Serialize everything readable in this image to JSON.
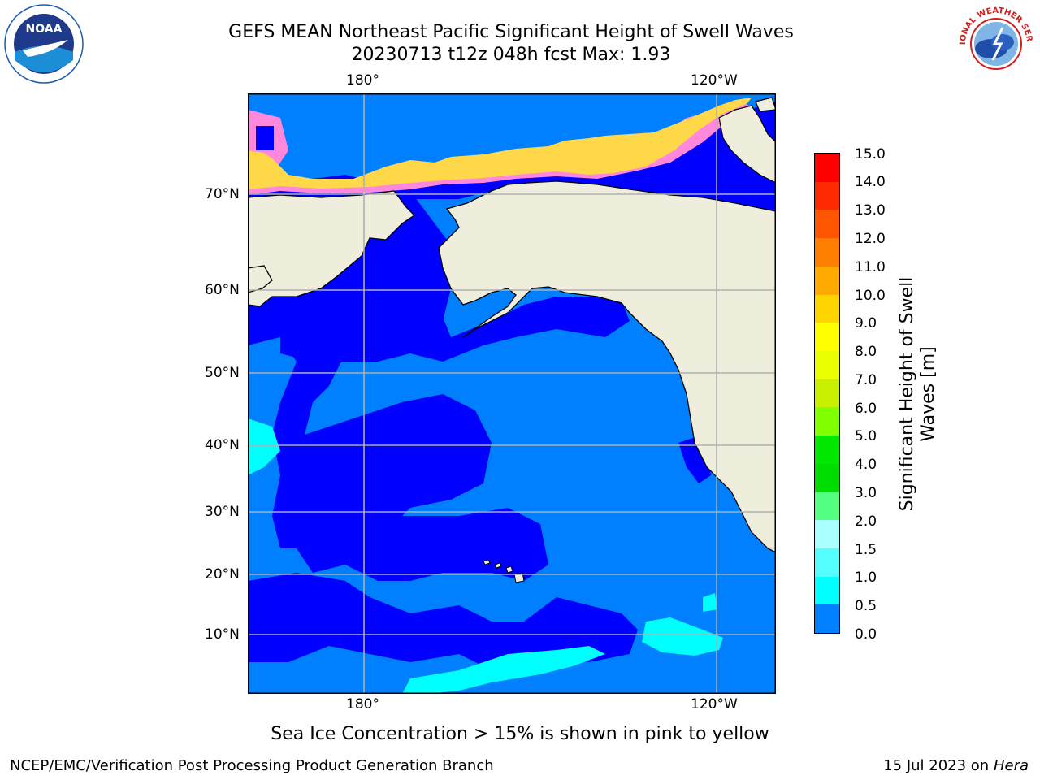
{
  "header": {
    "title_line1": "GEFS MEAN Northeast Pacific Significant Height of Swell Waves",
    "title_line2": "20230713 t12z 048h fcst   Max: 1.93"
  },
  "logos": {
    "left": "NOAA",
    "right": "NATIONAL WEATHER SERVICE"
  },
  "map": {
    "top_lon_ticks": [
      "180°",
      "120°W"
    ],
    "bottom_lon_ticks": [
      "180°",
      "120°W"
    ],
    "lat_ticks": [
      "70°N",
      "60°N",
      "50°N",
      "40°N",
      "30°N",
      "20°N",
      "10°N"
    ],
    "colors": {
      "land": "#efeddc",
      "water_0_05": "#0000ff",
      "water_05_1": "#0080ff",
      "water_1_15": "#00ffff",
      "ice_pink": "#ff88dd",
      "ice_yellow": "#ffd84a"
    }
  },
  "colorbar": {
    "label_line1": "Significant Height of Swell",
    "label_line2": "Waves [m]",
    "ticks": [
      "15.0",
      "14.0",
      "13.0",
      "12.0",
      "11.0",
      "10.0",
      "9.0",
      "8.0",
      "7.0",
      "6.0",
      "5.0",
      "4.0",
      "3.0",
      "2.0",
      "1.5",
      "1.0",
      "0.5",
      "0.0"
    ],
    "colors": [
      "#ff0000",
      "#ff2a00",
      "#ff5500",
      "#ff8000",
      "#ffaa00",
      "#ffd500",
      "#ffff00",
      "#eaff00",
      "#c8f000",
      "#80ff00",
      "#00e800",
      "#00dd00",
      "#55ff80",
      "#aaffff",
      "#55ffff",
      "#00ffff",
      "#0080ff",
      "#0000ff"
    ]
  },
  "caption": "Sea Ice Concentration > 15% is shown in pink to yellow",
  "footer": {
    "left": "NCEP/EMC/Verification Post Processing Product Generation Branch",
    "right_date": "15 Jul 2023 on ",
    "right_host": "Hera"
  }
}
